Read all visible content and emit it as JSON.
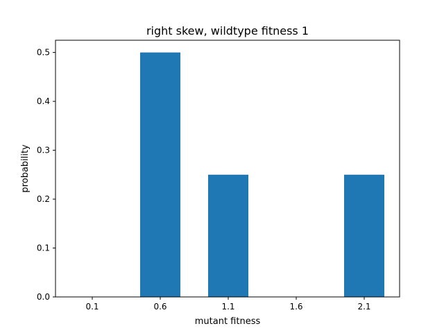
{
  "chart_data": {
    "type": "bar",
    "title": "right skew, wildtype fitness 1",
    "xlabel": "mutant fitness",
    "ylabel": "probability",
    "categories": [
      "0.1",
      "0.6",
      "1.1",
      "1.6",
      "2.1"
    ],
    "values": [
      0.0,
      0.5,
      0.25,
      0.0,
      0.25
    ],
    "yticks": [
      "0.0",
      "0.1",
      "0.2",
      "0.3",
      "0.4",
      "0.5"
    ],
    "ylim": [
      0,
      0.525
    ],
    "grid": false,
    "bar_color": "#1f77b4"
  }
}
